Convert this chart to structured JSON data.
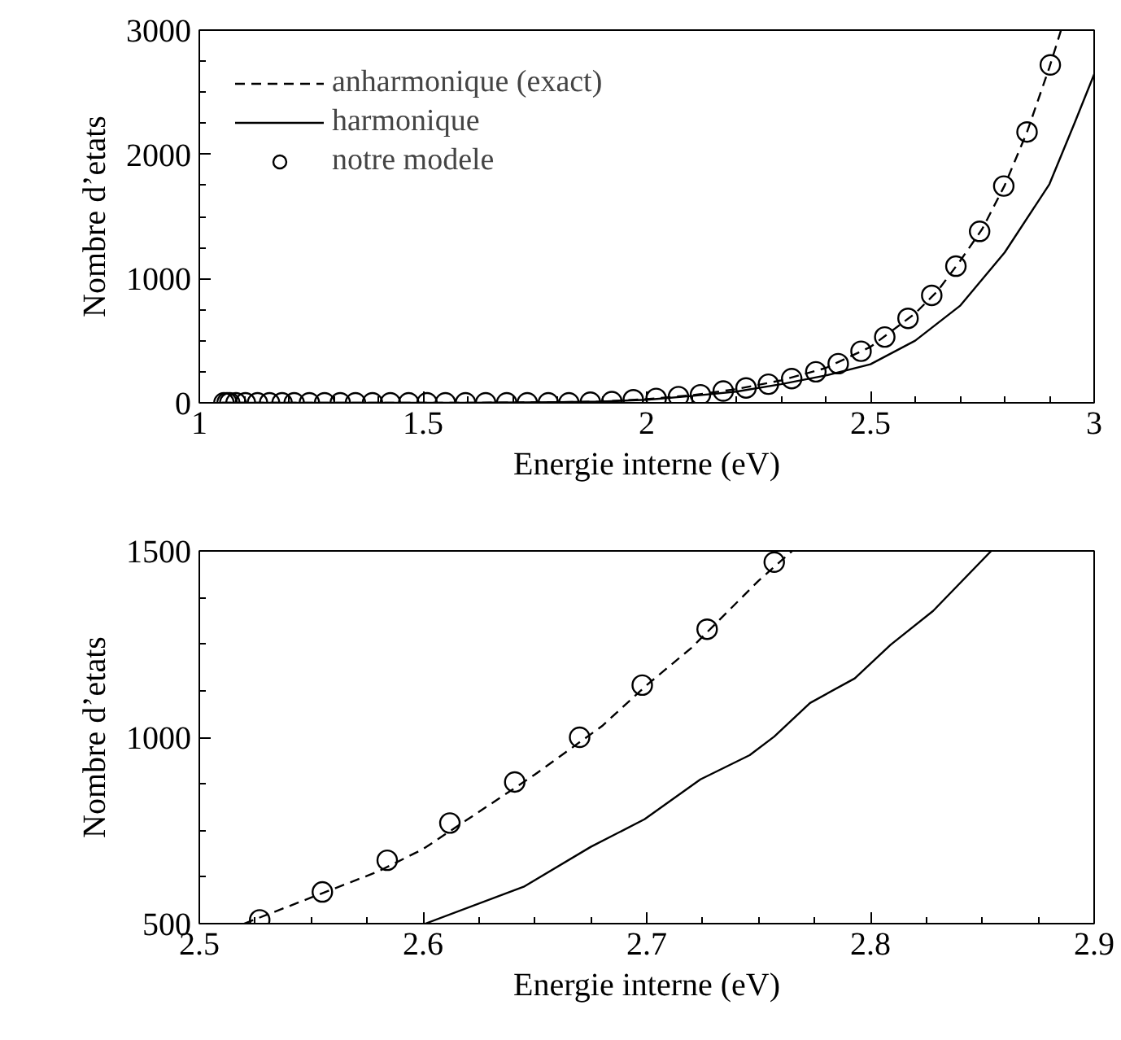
{
  "chart_data": [
    {
      "type": "line",
      "xlabel": "Energie interne (eV)",
      "ylabel": "Nombre d’etats",
      "xlim": [
        1,
        3
      ],
      "ylim": [
        0,
        3000
      ],
      "xticks": [
        1,
        1.5,
        2,
        2.5,
        3
      ],
      "yticks": [
        0,
        1000,
        2000,
        3000
      ],
      "grid": false,
      "legend": "top left",
      "series": [
        {
          "name": "anharmonique (exact)",
          "color": "#000000",
          "line_style": "dashed",
          "x": [
            1.05,
            1.3,
            1.6,
            1.8,
            1.9,
            2.0,
            2.1,
            2.2,
            2.3,
            2.4,
            2.5,
            2.6,
            2.65,
            2.7,
            2.75,
            2.8,
            2.85,
            2.9,
            2.926
          ],
          "values": [
            0,
            0,
            0,
            5,
            10,
            30,
            60,
            110,
            180,
            280,
            450,
            720,
            900,
            1140,
            1400,
            1750,
            2180,
            2700,
            3000
          ]
        },
        {
          "name": "harmonique",
          "color": "#000000",
          "line_style": "solid",
          "x": [
            1.05,
            1.3,
            1.6,
            1.8,
            1.9,
            2.0,
            2.1,
            2.2,
            2.3,
            2.4,
            2.5,
            2.6,
            2.7,
            2.8,
            2.9,
            2.956,
            3.0
          ],
          "values": [
            0,
            0,
            0,
            5,
            10,
            25,
            55,
            90,
            150,
            220,
            310,
            500,
            780,
            1210,
            1760,
            2250,
            2645
          ]
        },
        {
          "name": "notre modele",
          "type": "scatter",
          "marker": "circle",
          "color": "#000000",
          "x": [
            1.055,
            1.062,
            1.068,
            1.082,
            1.103,
            1.13,
            1.157,
            1.185,
            1.212,
            1.246,
            1.28,
            1.315,
            1.349,
            1.387,
            1.427,
            1.468,
            1.509,
            1.55,
            1.595,
            1.64,
            1.687,
            1.733,
            1.78,
            1.826,
            1.874,
            1.922,
            1.97,
            2.021,
            2.071,
            2.12,
            2.171,
            2.222,
            2.272,
            2.324,
            2.378,
            2.428,
            2.479,
            2.532,
            2.584,
            2.637,
            2.691,
            2.744,
            2.798,
            2.85,
            2.902
          ],
          "values": [
            0,
            0,
            0,
            0,
            0,
            0,
            0,
            0,
            0,
            0,
            0,
            0,
            0,
            0,
            0,
            0,
            0,
            0,
            0,
            0,
            0,
            0,
            0,
            0,
            5,
            10,
            25,
            35,
            50,
            65,
            95,
            120,
            150,
            195,
            250,
            315,
            415,
            530,
            680,
            865,
            1100,
            1380,
            1745,
            2180,
            2720
          ]
        }
      ]
    },
    {
      "type": "line",
      "xlabel": "Energie interne (eV)",
      "ylabel": "Nombre d’etats",
      "xlim": [
        2.5,
        2.9
      ],
      "ylim": [
        500,
        1500
      ],
      "xticks": [
        2.5,
        2.6,
        2.7,
        2.8,
        2.9
      ],
      "yticks": [
        500,
        1000,
        1500
      ],
      "grid": false,
      "legend": false,
      "series": [
        {
          "color": "#000000",
          "line_style": "dashed",
          "x": [
            2.52,
            2.55,
            2.58,
            2.6,
            2.62,
            2.65,
            2.68,
            2.7,
            2.72,
            2.75,
            2.765
          ],
          "values": [
            500,
            570,
            640,
            700,
            780,
            900,
            1030,
            1140,
            1240,
            1420,
            1500
          ]
        },
        {
          "color": "#000000",
          "line_style": "solid",
          "x": [
            2.601,
            2.645,
            2.675,
            2.699,
            2.724,
            2.746,
            2.757,
            2.773,
            2.793,
            2.809,
            2.828,
            2.854
          ],
          "values": [
            500,
            599,
            706,
            780,
            887,
            952,
            1002,
            1092,
            1158,
            1248,
            1339,
            1500
          ]
        },
        {
          "type": "scatter",
          "marker": "circle",
          "color": "#000000",
          "x": [
            2.527,
            2.555,
            2.584,
            2.612,
            2.641,
            2.67,
            2.698,
            2.727,
            2.757
          ],
          "values": [
            510,
            585,
            670,
            770,
            880,
            1000,
            1140,
            1290,
            1470
          ]
        }
      ]
    }
  ]
}
